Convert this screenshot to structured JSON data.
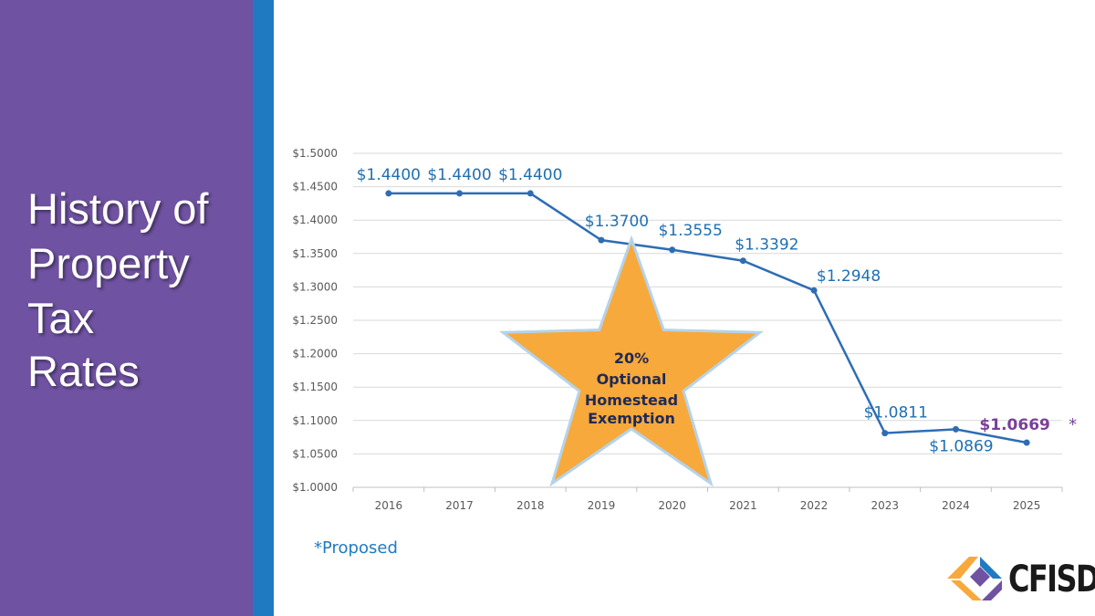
{
  "title_lines": [
    "History of",
    "Property",
    "Tax",
    "Rates"
  ],
  "footnote": "*Proposed",
  "logo_text": "CFISD",
  "star_lines": [
    "20%",
    "Optional",
    "Homestead",
    "Exemption"
  ],
  "colors": {
    "panel": "#6f52a1",
    "accent": "#1f7ac2",
    "line": "#2e6db4",
    "labels": "#1f6fb0",
    "proposed_label": "#7b3f98",
    "star_fill": "#f7a93b",
    "star_text": "#1f2a55"
  },
  "chart_data": {
    "type": "line",
    "categories": [
      "2016",
      "2017",
      "2018",
      "2019",
      "2020",
      "2021",
      "2022",
      "2023",
      "2024",
      "2025"
    ],
    "series": [
      {
        "values": [
          1.44,
          1.44,
          1.44,
          1.37,
          1.3555,
          1.3392,
          1.2948,
          1.0811,
          1.0869,
          1.0669
        ]
      }
    ],
    "data_labels": [
      "$1.4400",
      "$1.4400",
      "$1.4400",
      "$1.3700",
      "$1.3555",
      "$1.3392",
      "$1.2948",
      "$1.0811",
      "$1.0869",
      "$1.0669"
    ],
    "proposed_marker": "*",
    "y_ticks": [
      "$1.0000",
      "$1.0500",
      "$1.1000",
      "$1.1500",
      "$1.2000",
      "$1.2500",
      "$1.3000",
      "$1.3500",
      "$1.4000",
      "$1.4500",
      "$1.5000"
    ],
    "ylim": [
      1.0,
      1.5
    ],
    "grid": true,
    "legend": "none"
  }
}
